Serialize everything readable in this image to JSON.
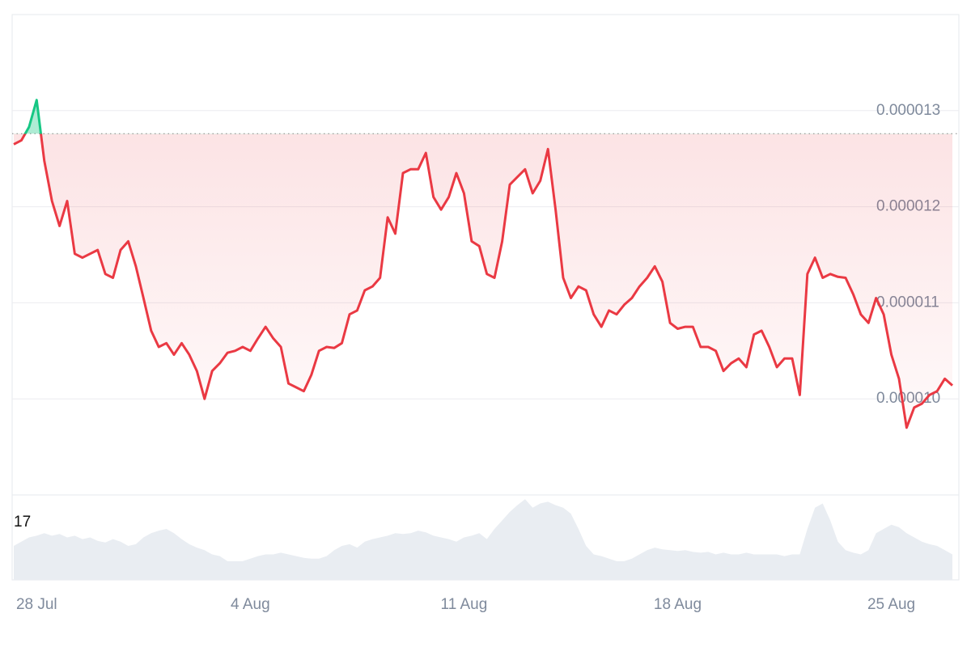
{
  "chart_data": {
    "type": "line",
    "categories": [
      null,
      null,
      null,
      "28 Jul",
      null,
      null,
      null,
      null,
      null,
      null,
      null,
      null,
      null,
      null,
      null,
      null,
      null,
      null,
      null,
      null,
      null,
      null,
      null,
      null,
      null,
      null,
      null,
      null,
      null,
      null,
      null,
      "4 Aug",
      null,
      null,
      null,
      null,
      null,
      null,
      null,
      null,
      null,
      null,
      null,
      null,
      null,
      null,
      null,
      null,
      null,
      null,
      null,
      null,
      null,
      null,
      null,
      null,
      null,
      null,
      null,
      "11 Aug",
      null,
      null,
      null,
      null,
      null,
      null,
      null,
      null,
      null,
      null,
      null,
      null,
      null,
      null,
      null,
      null,
      null,
      null,
      null,
      null,
      null,
      null,
      null,
      null,
      null,
      null,
      null,
      "18 Aug",
      null,
      null,
      null,
      null,
      null,
      null,
      null,
      null,
      null,
      null,
      null,
      null,
      null,
      null,
      null,
      null,
      null,
      null,
      null,
      null,
      null,
      null,
      null,
      null,
      null,
      null,
      null,
      "25 Aug",
      null,
      null,
      null,
      null,
      null,
      null,
      null,
      null
    ],
    "series": [
      {
        "values": [
          1.265e-05,
          1.269e-05,
          1.283e-05,
          1.311e-05,
          1.248e-05,
          1.206e-05,
          1.18e-05,
          1.206e-05,
          1.151e-05,
          1.147e-05,
          1.151e-05,
          1.155e-05,
          1.13e-05,
          1.126e-05,
          1.155e-05,
          1.164e-05,
          1.138e-05,
          1.105e-05,
          1.071e-05,
          1.054e-05,
          1.058e-05,
          1.046e-05,
          1.058e-05,
          1.046e-05,
          1.029e-05,
          1e-05,
          1.029e-05,
          1.037e-05,
          1.048e-05,
          1.05e-05,
          1.054e-05,
          1.05e-05,
          1.063e-05,
          1.075e-05,
          1.063e-05,
          1.054e-05,
          1.016e-05,
          1.012e-05,
          1.008e-05,
          1.025e-05,
          1.05e-05,
          1.054e-05,
          1.053e-05,
          1.058e-05,
          1.088e-05,
          1.092e-05,
          1.113e-05,
          1.117e-05,
          1.126e-05,
          1.189e-05,
          1.172e-05,
          1.235e-05,
          1.239e-05,
          1.239e-05,
          1.256e-05,
          1.21e-05,
          1.197e-05,
          1.21e-05,
          1.235e-05,
          1.214e-05,
          1.164e-05,
          1.159e-05,
          1.13e-05,
          1.126e-05,
          1.164e-05,
          1.223e-05,
          1.231e-05,
          1.239e-05,
          1.214e-05,
          1.227e-05,
          1.26e-05,
          1.197e-05,
          1.126e-05,
          1.105e-05,
          1.117e-05,
          1.113e-05,
          1.088e-05,
          1.075e-05,
          1.092e-05,
          1.088e-05,
          1.098e-05,
          1.105e-05,
          1.117e-05,
          1.126e-05,
          1.138e-05,
          1.122e-05,
          1.079e-05,
          1.073e-05,
          1.075e-05,
          1.075e-05,
          1.054e-05,
          1.054e-05,
          1.05e-05,
          1.029e-05,
          1.037e-05,
          1.042e-05,
          1.033e-05,
          1.067e-05,
          1.071e-05,
          1.054e-05,
          1.033e-05,
          1.042e-05,
          1.042e-05,
          1.004e-05,
          1.13e-05,
          1.147e-05,
          1.126e-05,
          1.13e-05,
          1.127e-05,
          1.126e-05,
          1.109e-05,
          1.088e-05,
          1.079e-05,
          1.105e-05,
          1.088e-05,
          1.046e-05,
          1.021e-05,
          9.7e-06,
          9.91e-06,
          9.95e-06,
          1.004e-05,
          1.008e-05,
          1.021e-05,
          1.014e-05
        ]
      }
    ],
    "volume": [
      40,
      45,
      50,
      52,
      55,
      52,
      54,
      50,
      52,
      48,
      50,
      46,
      44,
      48,
      45,
      40,
      42,
      50,
      55,
      58,
      60,
      55,
      48,
      42,
      38,
      35,
      30,
      28,
      22,
      22,
      22,
      25,
      28,
      30,
      30,
      32,
      30,
      28,
      26,
      25,
      25,
      28,
      35,
      40,
      42,
      38,
      45,
      48,
      50,
      52,
      55,
      54,
      55,
      58,
      56,
      52,
      50,
      48,
      45,
      50,
      52,
      55,
      48,
      60,
      70,
      80,
      88,
      95,
      85,
      90,
      92,
      88,
      85,
      78,
      60,
      40,
      30,
      28,
      25,
      22,
      22,
      25,
      30,
      35,
      38,
      36,
      35,
      34,
      35,
      33,
      32,
      33,
      30,
      32,
      30,
      30,
      32,
      30,
      30,
      30,
      30,
      28,
      30,
      30,
      60,
      85,
      90,
      70,
      45,
      35,
      32,
      30,
      35,
      55,
      60,
      65,
      62,
      55,
      50,
      45,
      42,
      40,
      35,
      30
    ],
    "volume_lim": [
      0,
      100
    ],
    "volume_label": "17",
    "baseline": 1.276e-05,
    "ylim": [
      9e-06,
      1.4e-05
    ],
    "yticks": [
      {
        "value": 1e-05,
        "label": "0.000010"
      },
      1.1e-05,
      1.2e-05,
      1.3e-05
    ],
    "grid": true,
    "up_color": "#16c784",
    "down_color": "#ea3943",
    "volume_color": "#e9edf2"
  }
}
